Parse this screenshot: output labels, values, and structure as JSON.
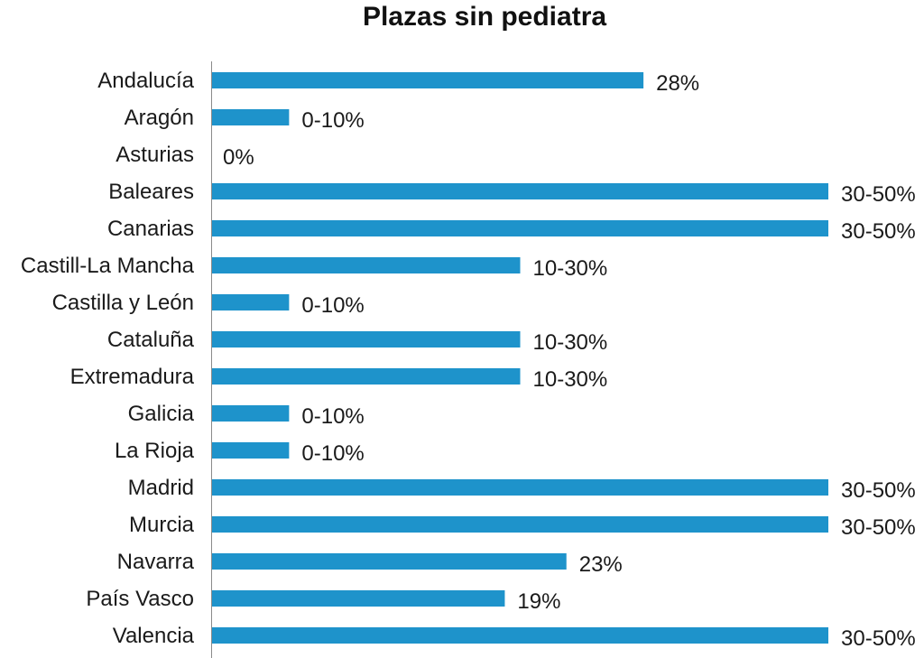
{
  "chart_data": {
    "type": "bar",
    "orientation": "horizontal",
    "title": "Plazas sin pediatra",
    "xlabel": "",
    "ylabel": "",
    "xlim": [
      0,
      40
    ],
    "grid": false,
    "bar_color": "#1e93cb",
    "categories": [
      "Andalucía",
      "Aragón",
      "Asturias",
      "Baleares",
      "Canarias",
      "Castill-La Mancha",
      "Castilla y León",
      "Cataluña",
      "Extremadura",
      "Galicia",
      "La Rioja",
      "Madrid",
      "Murcia",
      "Navarra",
      "País Vasco",
      "Valencia"
    ],
    "values": [
      28,
      5,
      0,
      40,
      40,
      20,
      5,
      20,
      20,
      5,
      5,
      40,
      40,
      23,
      19,
      40
    ],
    "data_labels": [
      "28%",
      "0-10%",
      "0%",
      "30-50%",
      "30-50%",
      "10-30%",
      "0-10%",
      "10-30%",
      "10-30%",
      "0-10%",
      "0-10%",
      "30-50%",
      "30-50%",
      "23%",
      "19%",
      "30-50%"
    ]
  }
}
